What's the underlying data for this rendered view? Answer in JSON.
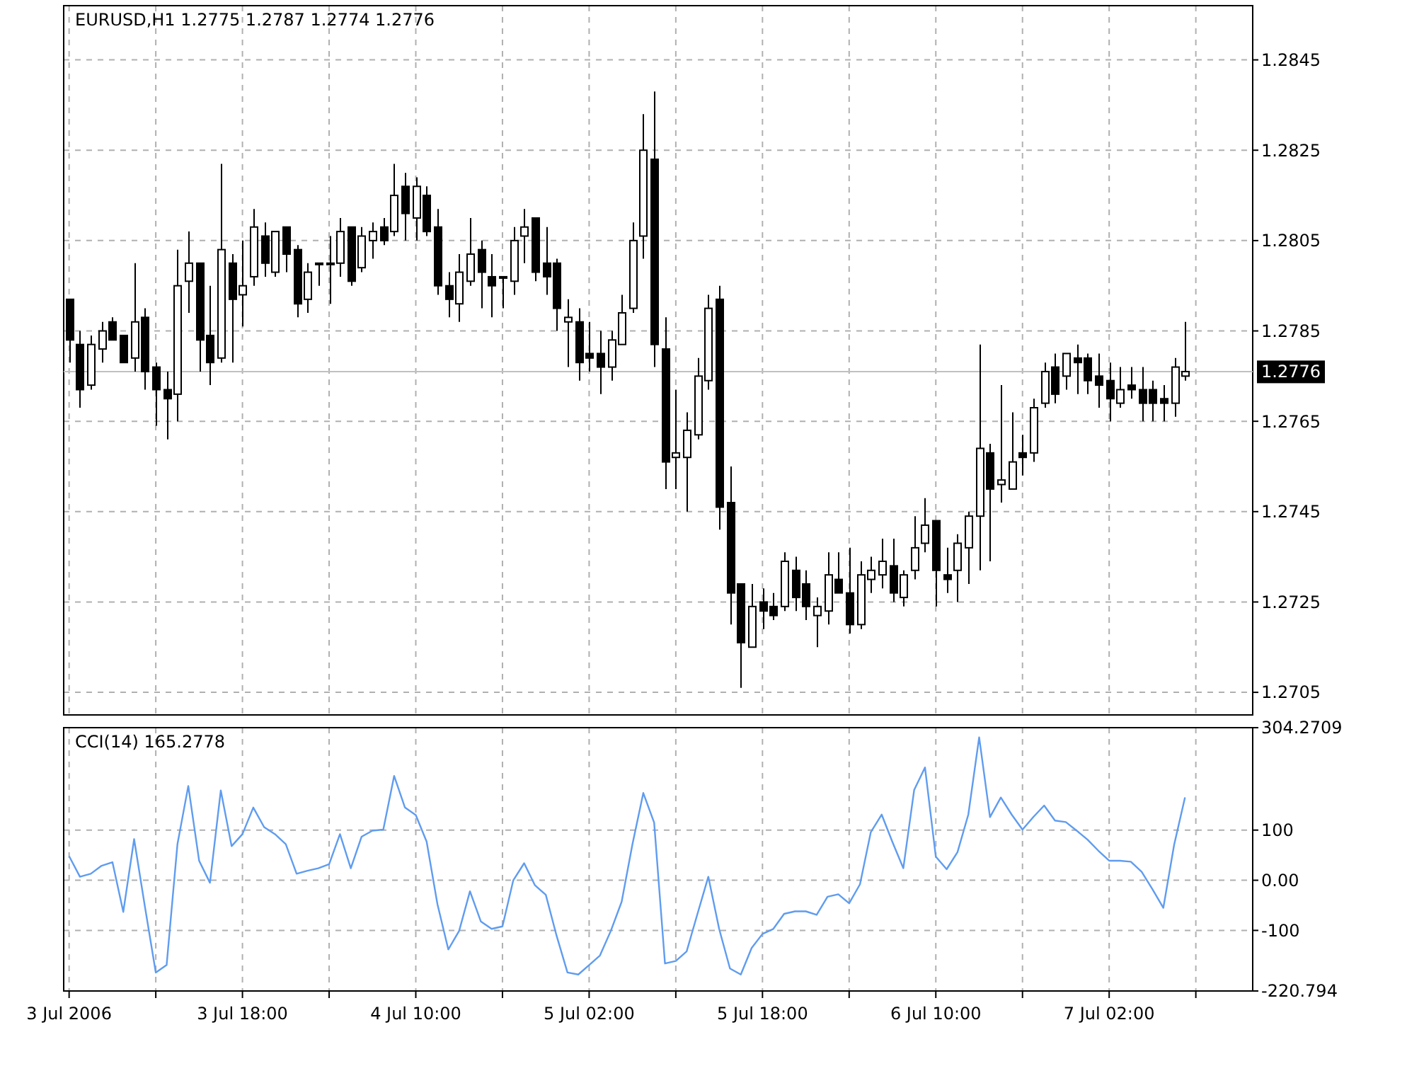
{
  "chart_data": [
    {
      "type": "candlestick",
      "title": "EURUSD,H1 1.2775 1.2787 1.2774 1.2776",
      "x": [
        "2006-07-03T02:00",
        "2006-07-03T03:00",
        "2006-07-03T04:00",
        "2006-07-03T05:00",
        "2006-07-03T06:00",
        "2006-07-03T07:00",
        "2006-07-03T08:00",
        "2006-07-03T09:00",
        "2006-07-03T10:00",
        "2006-07-03T11:00",
        "2006-07-03T12:00",
        "2006-07-03T13:00",
        "2006-07-03T14:00",
        "2006-07-03T15:00",
        "2006-07-03T16:00",
        "2006-07-03T17:00",
        "2006-07-03T18:00",
        "2006-07-03T19:00",
        "2006-07-03T20:00",
        "2006-07-03T21:00",
        "2006-07-03T22:00",
        "2006-07-03T23:00",
        "2006-07-04T00:00",
        "2006-07-04T01:00",
        "2006-07-04T02:00",
        "2006-07-04T03:00",
        "2006-07-04T04:00",
        "2006-07-04T05:00",
        "2006-07-04T06:00",
        "2006-07-04T07:00",
        "2006-07-04T08:00",
        "2006-07-04T09:00",
        "2006-07-04T10:00",
        "2006-07-04T11:00",
        "2006-07-04T12:00",
        "2006-07-04T13:00",
        "2006-07-04T14:00",
        "2006-07-04T15:00",
        "2006-07-04T16:00",
        "2006-07-04T17:00",
        "2006-07-04T18:00",
        "2006-07-04T19:00",
        "2006-07-04T20:00",
        "2006-07-04T21:00",
        "2006-07-04T22:00",
        "2006-07-04T23:00",
        "2006-07-05T00:00",
        "2006-07-05T01:00",
        "2006-07-05T02:00",
        "2006-07-05T03:00",
        "2006-07-05T04:00",
        "2006-07-05T05:00",
        "2006-07-05T06:00",
        "2006-07-05T07:00",
        "2006-07-05T08:00",
        "2006-07-05T09:00",
        "2006-07-05T10:00",
        "2006-07-05T11:00",
        "2006-07-05T12:00",
        "2006-07-05T13:00",
        "2006-07-05T14:00",
        "2006-07-05T15:00",
        "2006-07-05T16:00",
        "2006-07-05T17:00",
        "2006-07-05T18:00",
        "2006-07-05T19:00",
        "2006-07-05T20:00",
        "2006-07-05T21:00",
        "2006-07-05T22:00",
        "2006-07-05T23:00",
        "2006-07-06T00:00",
        "2006-07-06T01:00",
        "2006-07-06T02:00",
        "2006-07-06T03:00",
        "2006-07-06T04:00",
        "2006-07-06T05:00",
        "2006-07-06T06:00",
        "2006-07-06T07:00",
        "2006-07-06T08:00",
        "2006-07-06T09:00",
        "2006-07-06T10:00",
        "2006-07-06T11:00",
        "2006-07-06T12:00",
        "2006-07-06T13:00",
        "2006-07-06T14:00",
        "2006-07-06T15:00",
        "2006-07-06T16:00",
        "2006-07-06T17:00",
        "2006-07-06T18:00",
        "2006-07-06T19:00",
        "2006-07-06T20:00",
        "2006-07-06T21:00",
        "2006-07-06T22:00",
        "2006-07-06T23:00",
        "2006-07-07T00:00",
        "2006-07-07T01:00",
        "2006-07-07T02:00",
        "2006-07-07T03:00",
        "2006-07-07T04:00",
        "2006-07-07T05:00",
        "2006-07-07T06:00",
        "2006-07-07T07:00",
        "2006-07-07T08:00",
        "2006-07-07T09:00"
      ],
      "ohlc": [
        [
          1.2792,
          1.2792,
          1.2778,
          1.2783
        ],
        [
          1.2782,
          1.2785,
          1.2768,
          1.2772
        ],
        [
          1.2773,
          1.2784,
          1.2772,
          1.2782
        ],
        [
          1.2781,
          1.2787,
          1.2778,
          1.2785
        ],
        [
          1.2787,
          1.2788,
          1.2783,
          1.2783
        ],
        [
          1.2784,
          1.2784,
          1.2778,
          1.2778
        ],
        [
          1.2779,
          1.28,
          1.2776,
          1.2787
        ],
        [
          1.2788,
          1.279,
          1.2772,
          1.2776
        ],
        [
          1.2777,
          1.2778,
          1.2764,
          1.2772
        ],
        [
          1.2772,
          1.2776,
          1.2761,
          1.277
        ],
        [
          1.2771,
          1.2803,
          1.2765,
          1.2795
        ],
        [
          1.2796,
          1.2807,
          1.2789,
          1.28
        ],
        [
          1.28,
          1.28,
          1.2776,
          1.2783
        ],
        [
          1.2784,
          1.2795,
          1.2773,
          1.2778
        ],
        [
          1.2779,
          1.2822,
          1.2778,
          1.2803
        ],
        [
          1.28,
          1.2802,
          1.2778,
          1.2792
        ],
        [
          1.2793,
          1.2805,
          1.2786,
          1.2795
        ],
        [
          1.2797,
          1.2812,
          1.2795,
          1.2808
        ],
        [
          1.2806,
          1.2809,
          1.2797,
          1.28
        ],
        [
          1.2798,
          1.2807,
          1.2797,
          1.2807
        ],
        [
          1.2808,
          1.2808,
          1.2798,
          1.2802
        ],
        [
          1.2803,
          1.2804,
          1.2788,
          1.2791
        ],
        [
          1.2792,
          1.28,
          1.2789,
          1.2798
        ],
        [
          1.28,
          1.28,
          1.2795,
          1.28
        ],
        [
          1.28,
          1.2806,
          1.2791,
          1.28
        ],
        [
          1.28,
          1.281,
          1.2797,
          1.2807
        ],
        [
          1.2808,
          1.2808,
          1.2795,
          1.2796
        ],
        [
          1.2799,
          1.2808,
          1.2798,
          1.2806
        ],
        [
          1.2805,
          1.2809,
          1.2801,
          1.2807
        ],
        [
          1.2808,
          1.281,
          1.2804,
          1.2805
        ],
        [
          1.2807,
          1.2822,
          1.2806,
          1.2815
        ],
        [
          1.2817,
          1.282,
          1.2805,
          1.2811
        ],
        [
          1.281,
          1.2819,
          1.2805,
          1.2817
        ],
        [
          1.2815,
          1.2817,
          1.2806,
          1.2807
        ],
        [
          1.2808,
          1.2812,
          1.2793,
          1.2795
        ],
        [
          1.2795,
          1.2798,
          1.2788,
          1.2792
        ],
        [
          1.2791,
          1.2802,
          1.2787,
          1.2798
        ],
        [
          1.2796,
          1.281,
          1.2795,
          1.2802
        ],
        [
          1.2803,
          1.2805,
          1.279,
          1.2798
        ],
        [
          1.2797,
          1.2802,
          1.2788,
          1.2795
        ],
        [
          1.2797,
          1.2797,
          1.279,
          1.2797
        ],
        [
          1.2796,
          1.2808,
          1.2793,
          1.2805
        ],
        [
          1.2806,
          1.2812,
          1.28,
          1.2808
        ],
        [
          1.281,
          1.281,
          1.2796,
          1.2798
        ],
        [
          1.28,
          1.2808,
          1.2793,
          1.2797
        ],
        [
          1.28,
          1.2801,
          1.2785,
          1.279
        ],
        [
          1.2787,
          1.2792,
          1.2777,
          1.2788
        ],
        [
          1.2787,
          1.279,
          1.2774,
          1.2778
        ],
        [
          1.278,
          1.2787,
          1.2776,
          1.2779
        ],
        [
          1.278,
          1.2785,
          1.2771,
          1.2777
        ],
        [
          1.2777,
          1.2785,
          1.2774,
          1.2783
        ],
        [
          1.2782,
          1.2793,
          1.2782,
          1.2789
        ],
        [
          1.279,
          1.2809,
          1.2789,
          1.2805
        ],
        [
          1.2806,
          1.2833,
          1.2801,
          1.2825
        ],
        [
          1.2823,
          1.2838,
          1.2777,
          1.2782
        ],
        [
          1.2781,
          1.2788,
          1.275,
          1.2756
        ],
        [
          1.2757,
          1.2772,
          1.275,
          1.2758
        ],
        [
          1.2757,
          1.2767,
          1.2745,
          1.2763
        ],
        [
          1.2762,
          1.2779,
          1.2761,
          1.2775
        ],
        [
          1.2774,
          1.2793,
          1.2772,
          1.279
        ],
        [
          1.2792,
          1.2795,
          1.2741,
          1.2746
        ],
        [
          1.2747,
          1.2755,
          1.272,
          1.2727
        ],
        [
          1.2729,
          1.2729,
          1.2706,
          1.2716
        ],
        [
          1.2715,
          1.2729,
          1.2715,
          1.2724
        ],
        [
          1.2725,
          1.2728,
          1.2719,
          1.2723
        ],
        [
          1.2724,
          1.2727,
          1.2721,
          1.2722
        ],
        [
          1.2724,
          1.2736,
          1.2723,
          1.2734
        ],
        [
          1.2732,
          1.2735,
          1.2723,
          1.2726
        ],
        [
          1.2729,
          1.2732,
          1.2721,
          1.2724
        ],
        [
          1.2722,
          1.2726,
          1.2715,
          1.2724
        ],
        [
          1.2723,
          1.2736,
          1.272,
          1.2731
        ],
        [
          1.273,
          1.2736,
          1.2727,
          1.2727
        ],
        [
          1.2727,
          1.2737,
          1.2718,
          1.272
        ],
        [
          1.272,
          1.2734,
          1.2719,
          1.2731
        ],
        [
          1.273,
          1.2735,
          1.2727,
          1.2732
        ],
        [
          1.2731,
          1.2739,
          1.2728,
          1.2734
        ],
        [
          1.2733,
          1.2739,
          1.2725,
          1.2727
        ],
        [
          1.2726,
          1.2732,
          1.2724,
          1.2731
        ],
        [
          1.2732,
          1.2744,
          1.273,
          1.2737
        ],
        [
          1.2738,
          1.2748,
          1.2736,
          1.2742
        ],
        [
          1.2743,
          1.2743,
          1.2724,
          1.2732
        ],
        [
          1.2731,
          1.2737,
          1.2727,
          1.273
        ],
        [
          1.2732,
          1.274,
          1.2725,
          1.2738
        ],
        [
          1.2737,
          1.2745,
          1.2729,
          1.2744
        ],
        [
          1.2744,
          1.2782,
          1.2732,
          1.2759
        ],
        [
          1.2758,
          1.276,
          1.2734,
          1.275
        ],
        [
          1.2751,
          1.2773,
          1.2747,
          1.2752
        ],
        [
          1.275,
          1.2767,
          1.275,
          1.2756
        ],
        [
          1.2758,
          1.2762,
          1.2753,
          1.2757
        ],
        [
          1.2758,
          1.277,
          1.2756,
          1.2768
        ],
        [
          1.2769,
          1.2778,
          1.2768,
          1.2776
        ],
        [
          1.2777,
          1.278,
          1.2769,
          1.2771
        ],
        [
          1.2775,
          1.278,
          1.2772,
          1.278
        ],
        [
          1.2779,
          1.2782,
          1.2771,
          1.2778
        ],
        [
          1.2779,
          1.278,
          1.2771,
          1.2774
        ],
        [
          1.2775,
          1.278,
          1.2768,
          1.2773
        ],
        [
          1.2774,
          1.2778,
          1.2765,
          1.277
        ],
        [
          1.2769,
          1.2777,
          1.2768,
          1.2772
        ],
        [
          1.2773,
          1.2777,
          1.277,
          1.2772
        ],
        [
          1.2772,
          1.2777,
          1.2765,
          1.2769
        ],
        [
          1.2772,
          1.2774,
          1.2765,
          1.2769
        ],
        [
          1.277,
          1.2773,
          1.2765,
          1.2769
        ],
        [
          1.2769,
          1.2779,
          1.2766,
          1.2777
        ],
        [
          1.2775,
          1.2787,
          1.2774,
          1.2776
        ]
      ],
      "xlim": [
        "2006-07-03T01:30",
        "2006-07-07T15:15"
      ],
      "xticks": [
        {
          "value": "2006-07-03T02:00",
          "label": null
        },
        {
          "value": "2006-07-03T10:00",
          "label": null
        },
        {
          "value": "2006-07-03T18:00",
          "label": null
        },
        {
          "value": "2006-07-04T02:00",
          "label": null
        },
        {
          "value": "2006-07-04T10:00",
          "label": null
        },
        {
          "value": "2006-07-04T18:00",
          "label": null
        },
        {
          "value": "2006-07-05T02:00",
          "label": null
        },
        {
          "value": "2006-07-05T10:00",
          "label": null
        },
        {
          "value": "2006-07-05T18:00",
          "label": null
        },
        {
          "value": "2006-07-06T02:00",
          "label": null
        },
        {
          "value": "2006-07-06T10:00",
          "label": null
        },
        {
          "value": "2006-07-06T18:00",
          "label": null
        },
        {
          "value": "2006-07-07T02:00",
          "label": null
        },
        {
          "value": "2006-07-07T10:00",
          "label": null
        }
      ],
      "ylim": [
        1.27,
        1.2857
      ],
      "yticks": [
        1.2705,
        1.2725,
        1.2745,
        1.2765,
        1.2785,
        1.2805,
        1.2825,
        1.2845
      ],
      "ref_lines": [
        {
          "axis": "y",
          "value": 1.2776,
          "label": "1.2776",
          "color": "#c0c0c0"
        }
      ],
      "grid": true,
      "tick_labels": "y"
    },
    {
      "type": "line",
      "title": "CCI(14) 165.2778",
      "x": [
        "2006-07-03T02:00",
        "2006-07-03T03:00",
        "2006-07-03T04:00",
        "2006-07-03T05:00",
        "2006-07-03T06:00",
        "2006-07-03T07:00",
        "2006-07-03T08:00",
        "2006-07-03T09:00",
        "2006-07-03T10:00",
        "2006-07-03T11:00",
        "2006-07-03T12:00",
        "2006-07-03T13:00",
        "2006-07-03T14:00",
        "2006-07-03T15:00",
        "2006-07-03T16:00",
        "2006-07-03T17:00",
        "2006-07-03T18:00",
        "2006-07-03T19:00",
        "2006-07-03T20:00",
        "2006-07-03T21:00",
        "2006-07-03T22:00",
        "2006-07-03T23:00",
        "2006-07-04T00:00",
        "2006-07-04T01:00",
        "2006-07-04T02:00",
        "2006-07-04T03:00",
        "2006-07-04T04:00",
        "2006-07-04T05:00",
        "2006-07-04T06:00",
        "2006-07-04T07:00",
        "2006-07-04T08:00",
        "2006-07-04T09:00",
        "2006-07-04T10:00",
        "2006-07-04T11:00",
        "2006-07-04T12:00",
        "2006-07-04T13:00",
        "2006-07-04T14:00",
        "2006-07-04T15:00",
        "2006-07-04T16:00",
        "2006-07-04T17:00",
        "2006-07-04T18:00",
        "2006-07-04T19:00",
        "2006-07-04T20:00",
        "2006-07-04T21:00",
        "2006-07-04T22:00",
        "2006-07-04T23:00",
        "2006-07-05T00:00",
        "2006-07-05T01:00",
        "2006-07-05T02:00",
        "2006-07-05T03:00",
        "2006-07-05T04:00",
        "2006-07-05T05:00",
        "2006-07-05T06:00",
        "2006-07-05T07:00",
        "2006-07-05T08:00",
        "2006-07-05T09:00",
        "2006-07-05T10:00",
        "2006-07-05T11:00",
        "2006-07-05T12:00",
        "2006-07-05T13:00",
        "2006-07-05T14:00",
        "2006-07-05T15:00",
        "2006-07-05T16:00",
        "2006-07-05T17:00",
        "2006-07-05T18:00",
        "2006-07-05T19:00",
        "2006-07-05T20:00",
        "2006-07-05T21:00",
        "2006-07-05T22:00",
        "2006-07-05T23:00",
        "2006-07-06T00:00",
        "2006-07-06T01:00",
        "2006-07-06T02:00",
        "2006-07-06T03:00",
        "2006-07-06T04:00",
        "2006-07-06T05:00",
        "2006-07-06T06:00",
        "2006-07-06T07:00",
        "2006-07-06T08:00",
        "2006-07-06T09:00",
        "2006-07-06T10:00",
        "2006-07-06T11:00",
        "2006-07-06T12:00",
        "2006-07-06T13:00",
        "2006-07-06T14:00",
        "2006-07-06T15:00",
        "2006-07-06T16:00",
        "2006-07-06T17:00",
        "2006-07-06T18:00",
        "2006-07-06T19:00",
        "2006-07-06T20:00",
        "2006-07-06T21:00",
        "2006-07-06T22:00",
        "2006-07-06T23:00",
        "2006-07-07T00:00",
        "2006-07-07T01:00",
        "2006-07-07T02:00",
        "2006-07-07T03:00",
        "2006-07-07T04:00",
        "2006-07-07T05:00",
        "2006-07-07T06:00",
        "2006-07-07T07:00",
        "2006-07-07T08:00",
        "2006-07-07T09:00"
      ],
      "series": [
        {
          "color": "#5f9cf0",
          "values": [
            48,
            7,
            13,
            29,
            36,
            -63,
            82,
            -53,
            -184,
            -169,
            72,
            188,
            39,
            -5,
            179,
            68,
            92,
            145,
            106,
            92,
            72,
            13,
            19,
            24,
            32,
            92,
            24,
            87,
            99,
            101,
            208,
            145,
            130,
            77,
            -48,
            -138,
            -101,
            -22,
            -82,
            -97,
            -92,
            0,
            34,
            -10,
            -29,
            -111,
            -184,
            -188,
            -169,
            -150,
            -101,
            -43,
            72,
            174,
            115,
            -166,
            -161,
            -142,
            -67,
            7,
            -97,
            -176,
            -188,
            -135,
            -107,
            -97,
            -67,
            -62,
            -62,
            -69,
            -33,
            -28,
            -46,
            -8,
            96,
            131,
            76,
            24,
            180,
            225,
            47,
            22,
            56,
            131,
            285,
            126,
            165,
            131,
            101,
            126,
            149,
            119,
            116,
            99,
            81,
            59,
            39,
            39,
            37,
            17,
            -18,
            -55,
            71,
            165.2778
          ]
        }
      ],
      "xlim": [
        "2006-07-03T01:30",
        "2006-07-07T15:15"
      ],
      "xticks": [
        {
          "value": "2006-07-03T02:00",
          "label": "3 Jul 2006"
        },
        {
          "value": "2006-07-03T10:00",
          "label": null
        },
        {
          "value": "2006-07-03T18:00",
          "label": "3 Jul 18:00"
        },
        {
          "value": "2006-07-04T02:00",
          "label": null
        },
        {
          "value": "2006-07-04T10:00",
          "label": "4 Jul 10:00"
        },
        {
          "value": "2006-07-04T18:00",
          "label": null
        },
        {
          "value": "2006-07-05T02:00",
          "label": "5 Jul 02:00"
        },
        {
          "value": "2006-07-05T10:00",
          "label": null
        },
        {
          "value": "2006-07-05T18:00",
          "label": "5 Jul 18:00"
        },
        {
          "value": "2006-07-06T02:00",
          "label": null
        },
        {
          "value": "2006-07-06T10:00",
          "label": "6 Jul 10:00"
        },
        {
          "value": "2006-07-06T18:00",
          "label": null
        },
        {
          "value": "2006-07-07T02:00",
          "label": "7 Jul 02:00"
        },
        {
          "value": "2006-07-07T10:00",
          "label": null
        }
      ],
      "ylim": [
        -220.794,
        304.2709
      ],
      "yticks": [
        {
          "value": -220.794,
          "label": "-220.794"
        },
        -100,
        {
          "value": 0,
          "label": "0.00"
        },
        100,
        {
          "value": 304.2709,
          "label": "304.2709"
        }
      ],
      "grid": true,
      "line_style": "solid",
      "marker": "none"
    }
  ]
}
